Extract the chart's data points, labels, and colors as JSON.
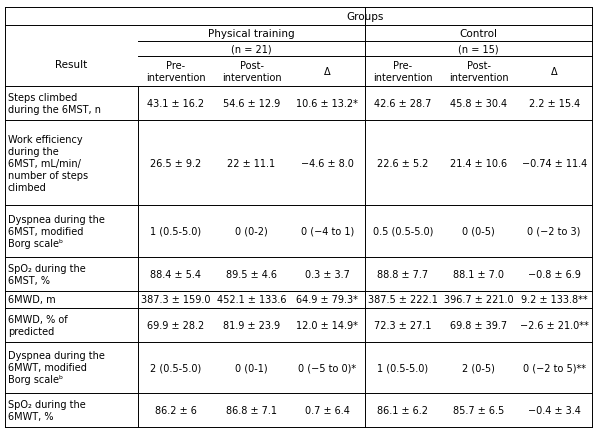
{
  "title": "Groups",
  "col_headers": {
    "group1": "Physical training",
    "group1_n": "(n = 21)",
    "group2": "Control",
    "group2_n": "(n = 15)"
  },
  "sub_headers": [
    "Pre-\nintervention",
    "Post-\nintervention",
    "Δ",
    "Pre-\nintervention",
    "Post-\nintervention",
    "Δ"
  ],
  "row_header": "Result",
  "rows": [
    {
      "label": "Steps climbed\nduring the 6MST, n",
      "values": [
        "43.1 ± 16.2",
        "54.6 ± 12.9",
        "10.6 ± 13.2*",
        "42.6 ± 28.7",
        "45.8 ± 30.4",
        "2.2 ± 15.4"
      ]
    },
    {
      "label": "Work efficiency\nduring the\n6MST, mL/min/\nnumber of steps\nclimbed",
      "values": [
        "26.5 ± 9.2",
        "22 ± 11.1",
        "−4.6 ± 8.0",
        "22.6 ± 5.2",
        "21.4 ± 10.6",
        "−0.74 ± 11.4"
      ]
    },
    {
      "label": "Dyspnea during the\n6MST, modified\nBorg scaleᵇ",
      "values": [
        "1 (0.5-5.0)",
        "0 (0-2)",
        "0 (−4 to 1)",
        "0.5 (0.5-5.0)",
        "0 (0-5)",
        "0 (−2 to 3)"
      ]
    },
    {
      "label": "SpO₂ during the\n6MST, %",
      "values": [
        "88.4 ± 5.4",
        "89.5 ± 4.6",
        "0.3 ± 3.7",
        "88.8 ± 7.7",
        "88.1 ± 7.0",
        "−0.8 ± 6.9"
      ]
    },
    {
      "label": "6MWD, m",
      "values": [
        "387.3 ± 159.0",
        "452.1 ± 133.6",
        "64.9 ± 79.3*",
        "387.5 ± 222.1",
        "396.7 ± 221.0",
        "9.2 ± 133.8**"
      ]
    },
    {
      "label": "6MWD, % of\npredicted",
      "values": [
        "69.9 ± 28.2",
        "81.9 ± 23.9",
        "12.0 ± 14.9*",
        "72.3 ± 27.1",
        "69.8 ± 39.7",
        "−2.6 ± 21.0**"
      ]
    },
    {
      "label": "Dyspnea during the\n6MWT, modified\nBorg scaleᵇ",
      "values": [
        "2 (0.5-5.0)",
        "0 (0-1)",
        "0 (−5 to 0)*",
        "1 (0.5-5.0)",
        "2 (0-5)",
        "0 (−2 to 5)**"
      ]
    },
    {
      "label": "SpO₂ during the\n6MWT, %",
      "values": [
        "86.2 ± 6",
        "86.8 ± 7.1",
        "0.7 ± 6.4",
        "86.1 ± 6.2",
        "85.7 ± 6.5",
        "−0.4 ± 3.4"
      ]
    }
  ],
  "font_size": 7.0,
  "header_font_size": 7.5,
  "bg_color": "#ffffff",
  "text_color": "#000000",
  "line_color": "#000000"
}
